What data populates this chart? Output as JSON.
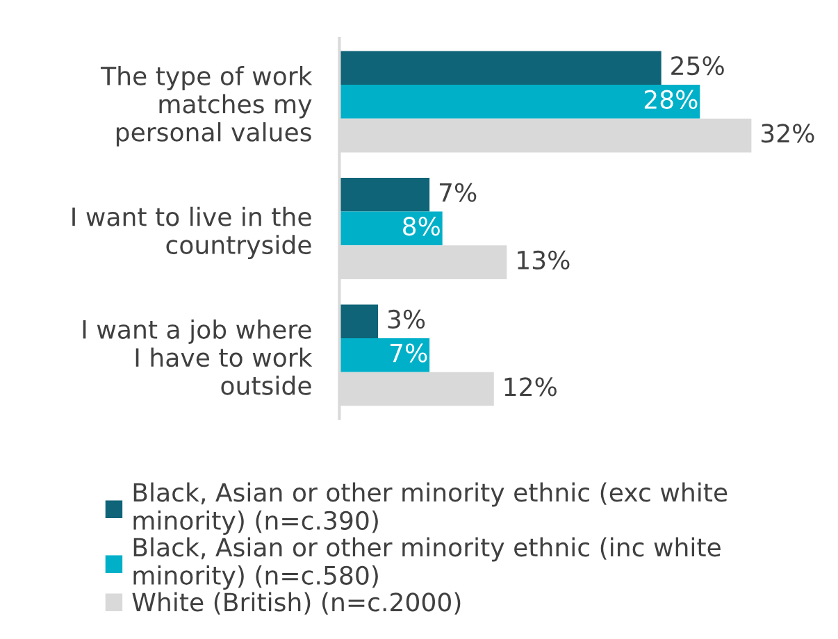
{
  "chart_data": {
    "type": "bar",
    "orientation": "horizontal",
    "categories": [
      "The type of work\nmatches my\npersonal values",
      "I want to live in the\ncountryside",
      "I want a job where\nI have to work\noutside"
    ],
    "series": [
      {
        "name": "Black, Asian or other minority ethnic (exc white\nminority) (n=c.390)",
        "color": "#0f6478",
        "values": [
          25,
          7,
          3
        ],
        "value_labels": [
          "25%",
          "7%",
          "3%"
        ]
      },
      {
        "name": "Black, Asian or other minority ethnic (inc white\nminority) (n=c.580)",
        "color": "#00b0c8",
        "values": [
          28,
          8,
          7
        ],
        "value_labels": [
          "28%",
          "8%",
          "7%"
        ]
      },
      {
        "name": "White (British) (n=c.2000)",
        "color": "#d9d9d9",
        "values": [
          32,
          13,
          12
        ],
        "value_labels": [
          "32%",
          "13%",
          "12%"
        ]
      }
    ],
    "legend": "bottom",
    "grid": false
  }
}
